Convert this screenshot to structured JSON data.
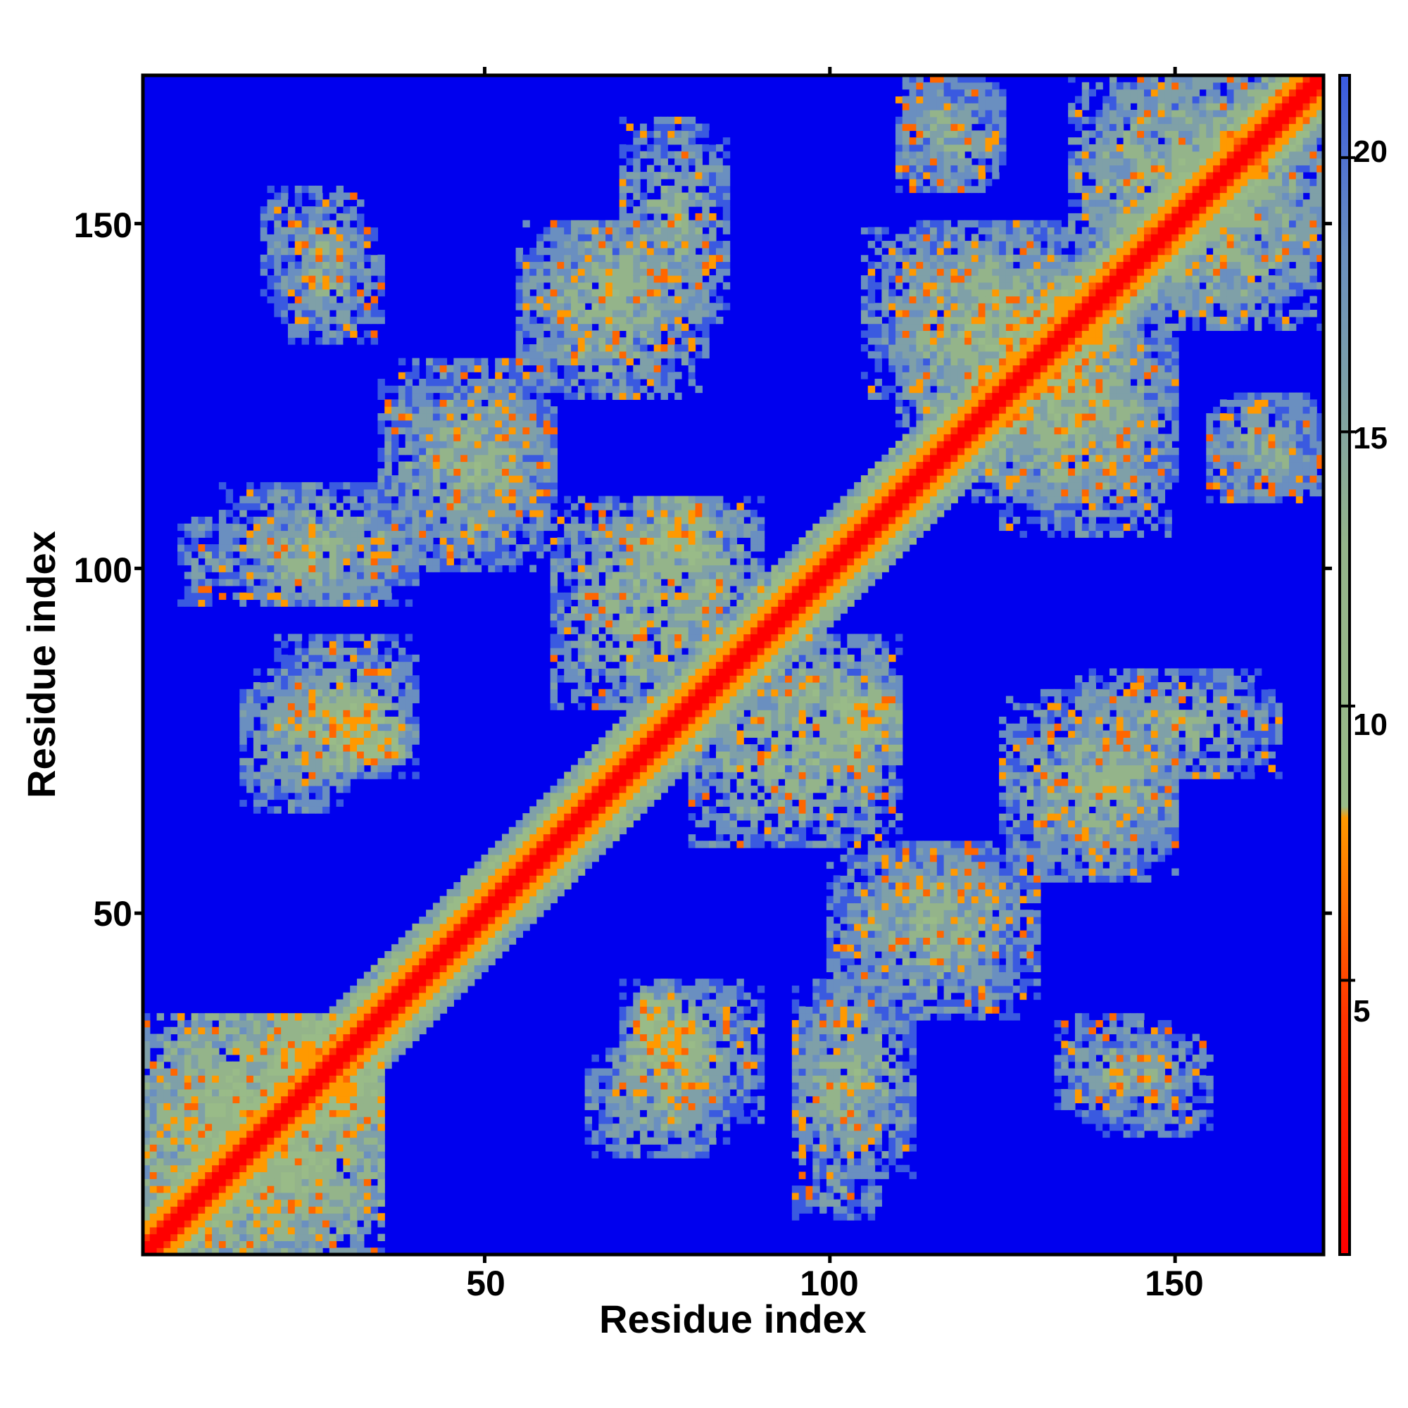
{
  "chart_data": {
    "type": "heatmap",
    "title": "",
    "xlabel": "Residue index",
    "ylabel": "Residue index",
    "xlim": [
      1,
      171
    ],
    "ylim": [
      1,
      171
    ],
    "x_ticks": [
      "50",
      "100",
      "150"
    ],
    "y_ticks": [
      "50",
      "100",
      "150"
    ],
    "colorbar": {
      "range": [
        0,
        21.5
      ],
      "ticks": [
        "5",
        "10",
        "15",
        "20"
      ],
      "colors": [
        "#ff0000",
        "#ff9900",
        "#99bb88",
        "#6a8fc0",
        "#0000ee"
      ]
    },
    "diagonal_value": 0,
    "background_value": 21.5,
    "contact_regions": [
      {
        "x_range": [
          1,
          35
        ],
        "y_range": [
          1,
          35
        ],
        "value": 9
      },
      {
        "x_range": [
          20,
          35
        ],
        "y_range": [
          20,
          35
        ],
        "value": 7
      },
      {
        "x_range": [
          6,
          12
        ],
        "y_range": [
          95,
          107
        ],
        "value": 14
      },
      {
        "x_range": [
          15,
          35
        ],
        "y_range": [
          95,
          107
        ],
        "value": 12
      },
      {
        "x_range": [
          25,
          35
        ],
        "y_range": [
          71,
          82
        ],
        "value": 8
      },
      {
        "x_range": [
          15,
          30
        ],
        "y_range": [
          65,
          85
        ],
        "value": 12
      },
      {
        "x_range": [
          18,
          32
        ],
        "y_range": [
          138,
          155
        ],
        "value": 13
      },
      {
        "x_range": [
          40,
          60
        ],
        "y_range": [
          105,
          125
        ],
        "value": 12
      },
      {
        "x_range": [
          55,
          82
        ],
        "y_range": [
          125,
          150
        ],
        "value": 12
      },
      {
        "x_range": [
          60,
          85
        ],
        "y_range": [
          80,
          110
        ],
        "value": 11
      },
      {
        "x_range": [
          70,
          90
        ],
        "y_range": [
          20,
          40
        ],
        "value": 12
      },
      {
        "x_range": [
          72,
          80
        ],
        "y_range": [
          28,
          38
        ],
        "value": 7
      },
      {
        "x_range": [
          90,
          110
        ],
        "y_range": [
          70,
          90
        ],
        "value": 11
      },
      {
        "x_range": [
          100,
          110
        ],
        "y_range": [
          74,
          82
        ],
        "value": 8
      },
      {
        "x_range": [
          95,
          112
        ],
        "y_range": [
          12,
          40
        ],
        "value": 12
      },
      {
        "x_range": [
          100,
          130
        ],
        "y_range": [
          35,
          60
        ],
        "value": 12
      },
      {
        "x_range": [
          105,
          140
        ],
        "y_range": [
          125,
          150
        ],
        "value": 12
      },
      {
        "x_range": [
          110,
          125
        ],
        "y_range": [
          155,
          171
        ],
        "value": 13
      },
      {
        "x_range": [
          130,
          150
        ],
        "y_range": [
          60,
          75
        ],
        "value": 11
      },
      {
        "x_range": [
          133,
          150
        ],
        "y_range": [
          20,
          35
        ],
        "value": 13
      },
      {
        "x_range": [
          135,
          165
        ],
        "y_range": [
          70,
          85
        ],
        "value": 12
      },
      {
        "x_range": [
          155,
          171
        ],
        "y_range": [
          110,
          125
        ],
        "value": 13
      },
      {
        "x_range": [
          135,
          171
        ],
        "y_range": [
          140,
          171
        ],
        "value": 11
      },
      {
        "x_range": [
          120,
          145
        ],
        "y_range": [
          110,
          140
        ],
        "value": 10
      }
    ]
  }
}
